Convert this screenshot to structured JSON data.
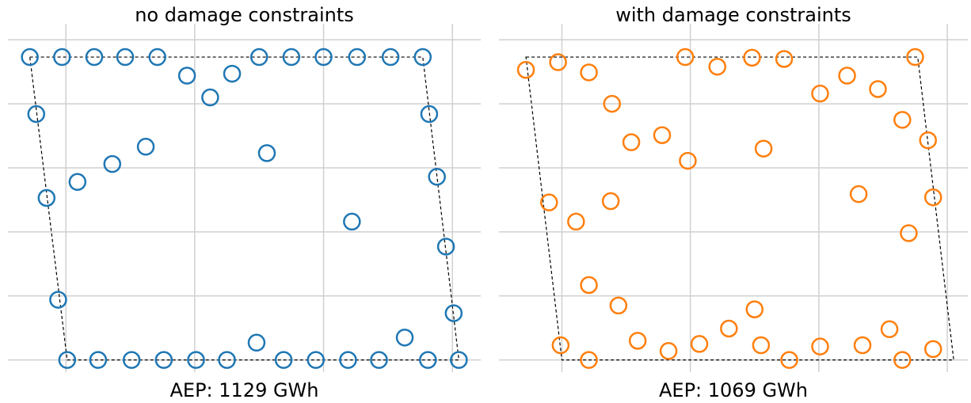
{
  "chart_data": [
    {
      "type": "scatter",
      "title": "no damage constraints",
      "xlabel": "AEP: 1129 GWh",
      "color": "#1f77b4",
      "xlim": [
        -0.45,
        3.22
      ],
      "ylim": [
        -0.19,
        5.25
      ],
      "xticks": [
        0,
        1,
        2,
        3
      ],
      "yticks": [
        0,
        1,
        2,
        3,
        4,
        5
      ],
      "grid": true,
      "boundary": {
        "x": [
          -0.28,
          2.77,
          3.05,
          0.01
        ],
        "y": [
          4.73,
          4.73,
          0,
          0
        ]
      },
      "x": [
        -0.28,
        -0.03,
        0.22,
        0.46,
        0.71,
        1.5,
        1.75,
        2.0,
        2.26,
        2.52,
        2.77,
        0.94,
        1.12,
        1.29,
        -0.23,
        2.82,
        0.62,
        0.36,
        0.09,
        1.56,
        -0.15,
        2.88,
        2.22,
        2.95,
        -0.06,
        3.01,
        1.48,
        2.63,
        0.01,
        0.25,
        0.51,
        0.76,
        1.01,
        1.25,
        1.69,
        1.94,
        2.19,
        2.43,
        2.81,
        3.05
      ],
      "y": [
        4.73,
        4.73,
        4.73,
        4.73,
        4.73,
        4.73,
        4.73,
        4.73,
        4.73,
        4.73,
        4.73,
        4.44,
        4.1,
        4.47,
        3.84,
        3.84,
        3.33,
        3.06,
        2.78,
        3.23,
        2.53,
        2.86,
        2.16,
        1.77,
        0.94,
        0.73,
        0.27,
        0.35,
        0,
        0,
        0,
        0,
        0,
        0,
        0,
        0,
        0,
        0,
        0,
        0
      ]
    },
    {
      "type": "scatter",
      "title": "with damage constraints",
      "xlabel": "AEP: 1069 GWh",
      "color": "#ff7f0e",
      "xlim": [
        -0.49,
        3.16
      ],
      "ylim": [
        -0.19,
        5.25
      ],
      "xticks": [
        0,
        1,
        2,
        3
      ],
      "yticks": [
        0,
        1,
        2,
        3,
        4,
        5
      ],
      "grid": true,
      "boundary": {
        "x": [
          -0.28,
          2.77,
          3.05,
          0
        ],
        "y": [
          4.73,
          4.73,
          0,
          0
        ]
      },
      "x": [
        -0.28,
        -0.03,
        0.21,
        0.96,
        1.21,
        1.48,
        1.73,
        2.75,
        0.39,
        2.01,
        2.22,
        2.46,
        2.65,
        2.85,
        0.54,
        0.78,
        0.98,
        1.57,
        -0.1,
        0.11,
        0.38,
        2.31,
        2.89,
        2.7,
        0.21,
        0.44,
        1.5,
        1.3,
        2.55,
        -0.01,
        0.59,
        0.83,
        1.07,
        1.55,
        2.01,
        2.34,
        2.89,
        0.21,
        1.77,
        2.65
      ],
      "y": [
        4.53,
        4.65,
        4.49,
        4.73,
        4.58,
        4.72,
        4.7,
        4.73,
        4.0,
        4.16,
        4.44,
        4.23,
        3.75,
        3.43,
        3.4,
        3.51,
        3.11,
        3.3,
        2.46,
        2.16,
        2.48,
        2.59,
        2.54,
        1.98,
        1.17,
        0.85,
        0.79,
        0.49,
        0.48,
        0.23,
        0.3,
        0.14,
        0.25,
        0.23,
        0.21,
        0.23,
        0.17,
        0,
        0,
        0
      ]
    }
  ]
}
